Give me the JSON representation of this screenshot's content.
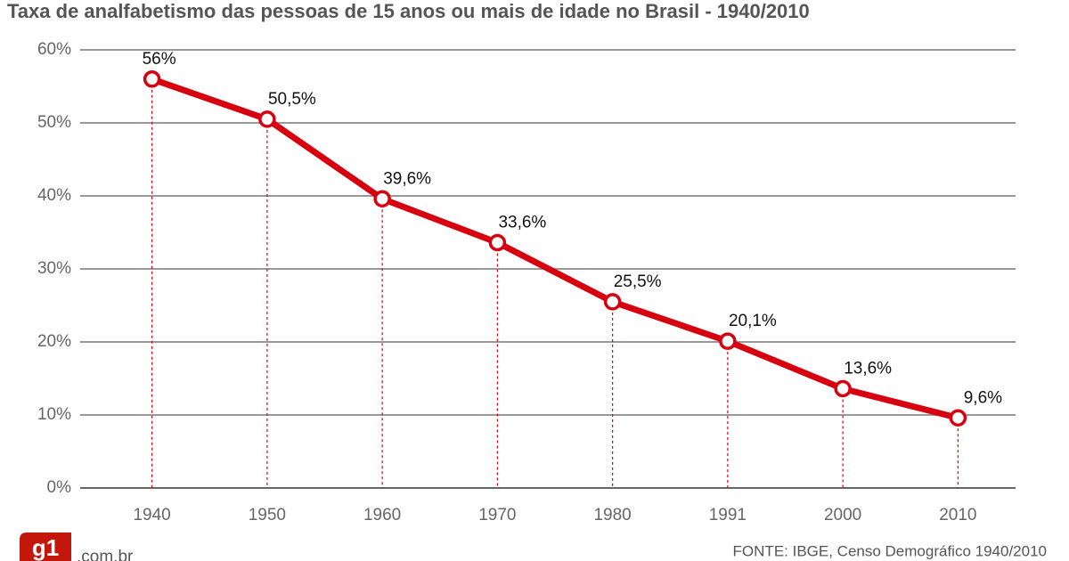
{
  "chart_data": {
    "type": "line",
    "title": "Taxa de analfabetismo das pessoas de 15 anos ou mais de idade no Brasil - 1940/2010",
    "categories": [
      "1940",
      "1950",
      "1960",
      "1970",
      "1980",
      "1991",
      "2000",
      "2010"
    ],
    "values": [
      56,
      50.5,
      39.6,
      33.6,
      25.5,
      20.1,
      13.6,
      9.6
    ],
    "value_labels": [
      "56%",
      "50,5%",
      "39,6%",
      "33,6%",
      "25,5%",
      "20,1%",
      "13,6%",
      "9,6%"
    ],
    "color": "#d7000f",
    "ylim": [
      0,
      60
    ],
    "yticks": [
      {
        "value": 0,
        "label": "0%"
      },
      {
        "value": 10,
        "label": "10%"
      },
      {
        "value": 20,
        "label": "20%"
      },
      {
        "value": 30,
        "label": "30%"
      },
      {
        "value": 40,
        "label": "40%"
      },
      {
        "value": 50,
        "label": "50%"
      },
      {
        "value": 60,
        "label": "60%"
      }
    ],
    "grid": true,
    "source": "FONTE: IBGE, Censo Demográfico 1940/2010",
    "logo": "g1",
    "logo_suffix": ".com.br"
  }
}
